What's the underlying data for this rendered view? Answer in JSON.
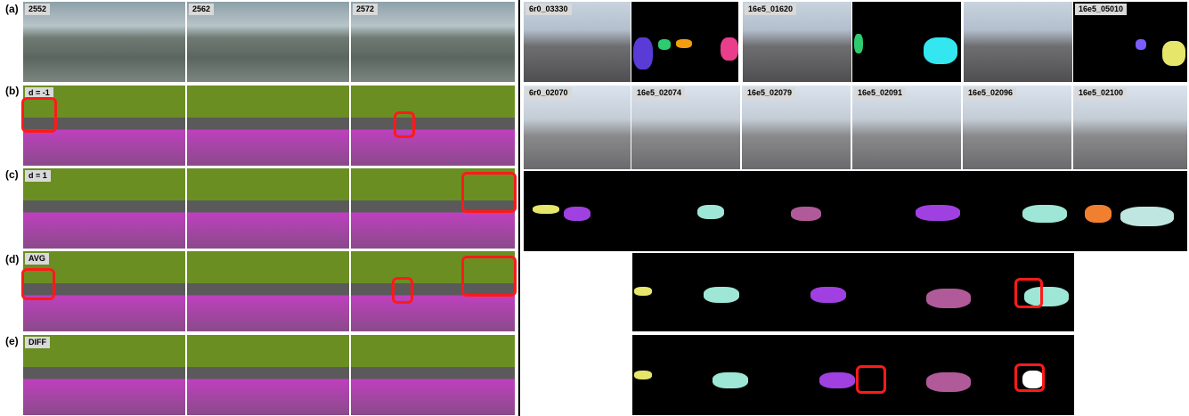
{
  "left_panel": {
    "row_labels": [
      "(a)",
      "(b)",
      "(c)",
      "(d)",
      "(e)"
    ],
    "frame_tags": [
      "2552",
      "2562",
      "2572"
    ],
    "variant_tags": [
      "d = -1",
      "d = 1",
      "AVG",
      "DIFF"
    ]
  },
  "right_panel": {
    "top_tags": [
      "6r0_03330",
      "16e5_01620",
      "16e5_05010"
    ],
    "sequence_tags": [
      "6r0_02070",
      "16e5_02074",
      "16e5_02079",
      "16e5_02091",
      "16e5_02096",
      "16e5_02100"
    ]
  }
}
